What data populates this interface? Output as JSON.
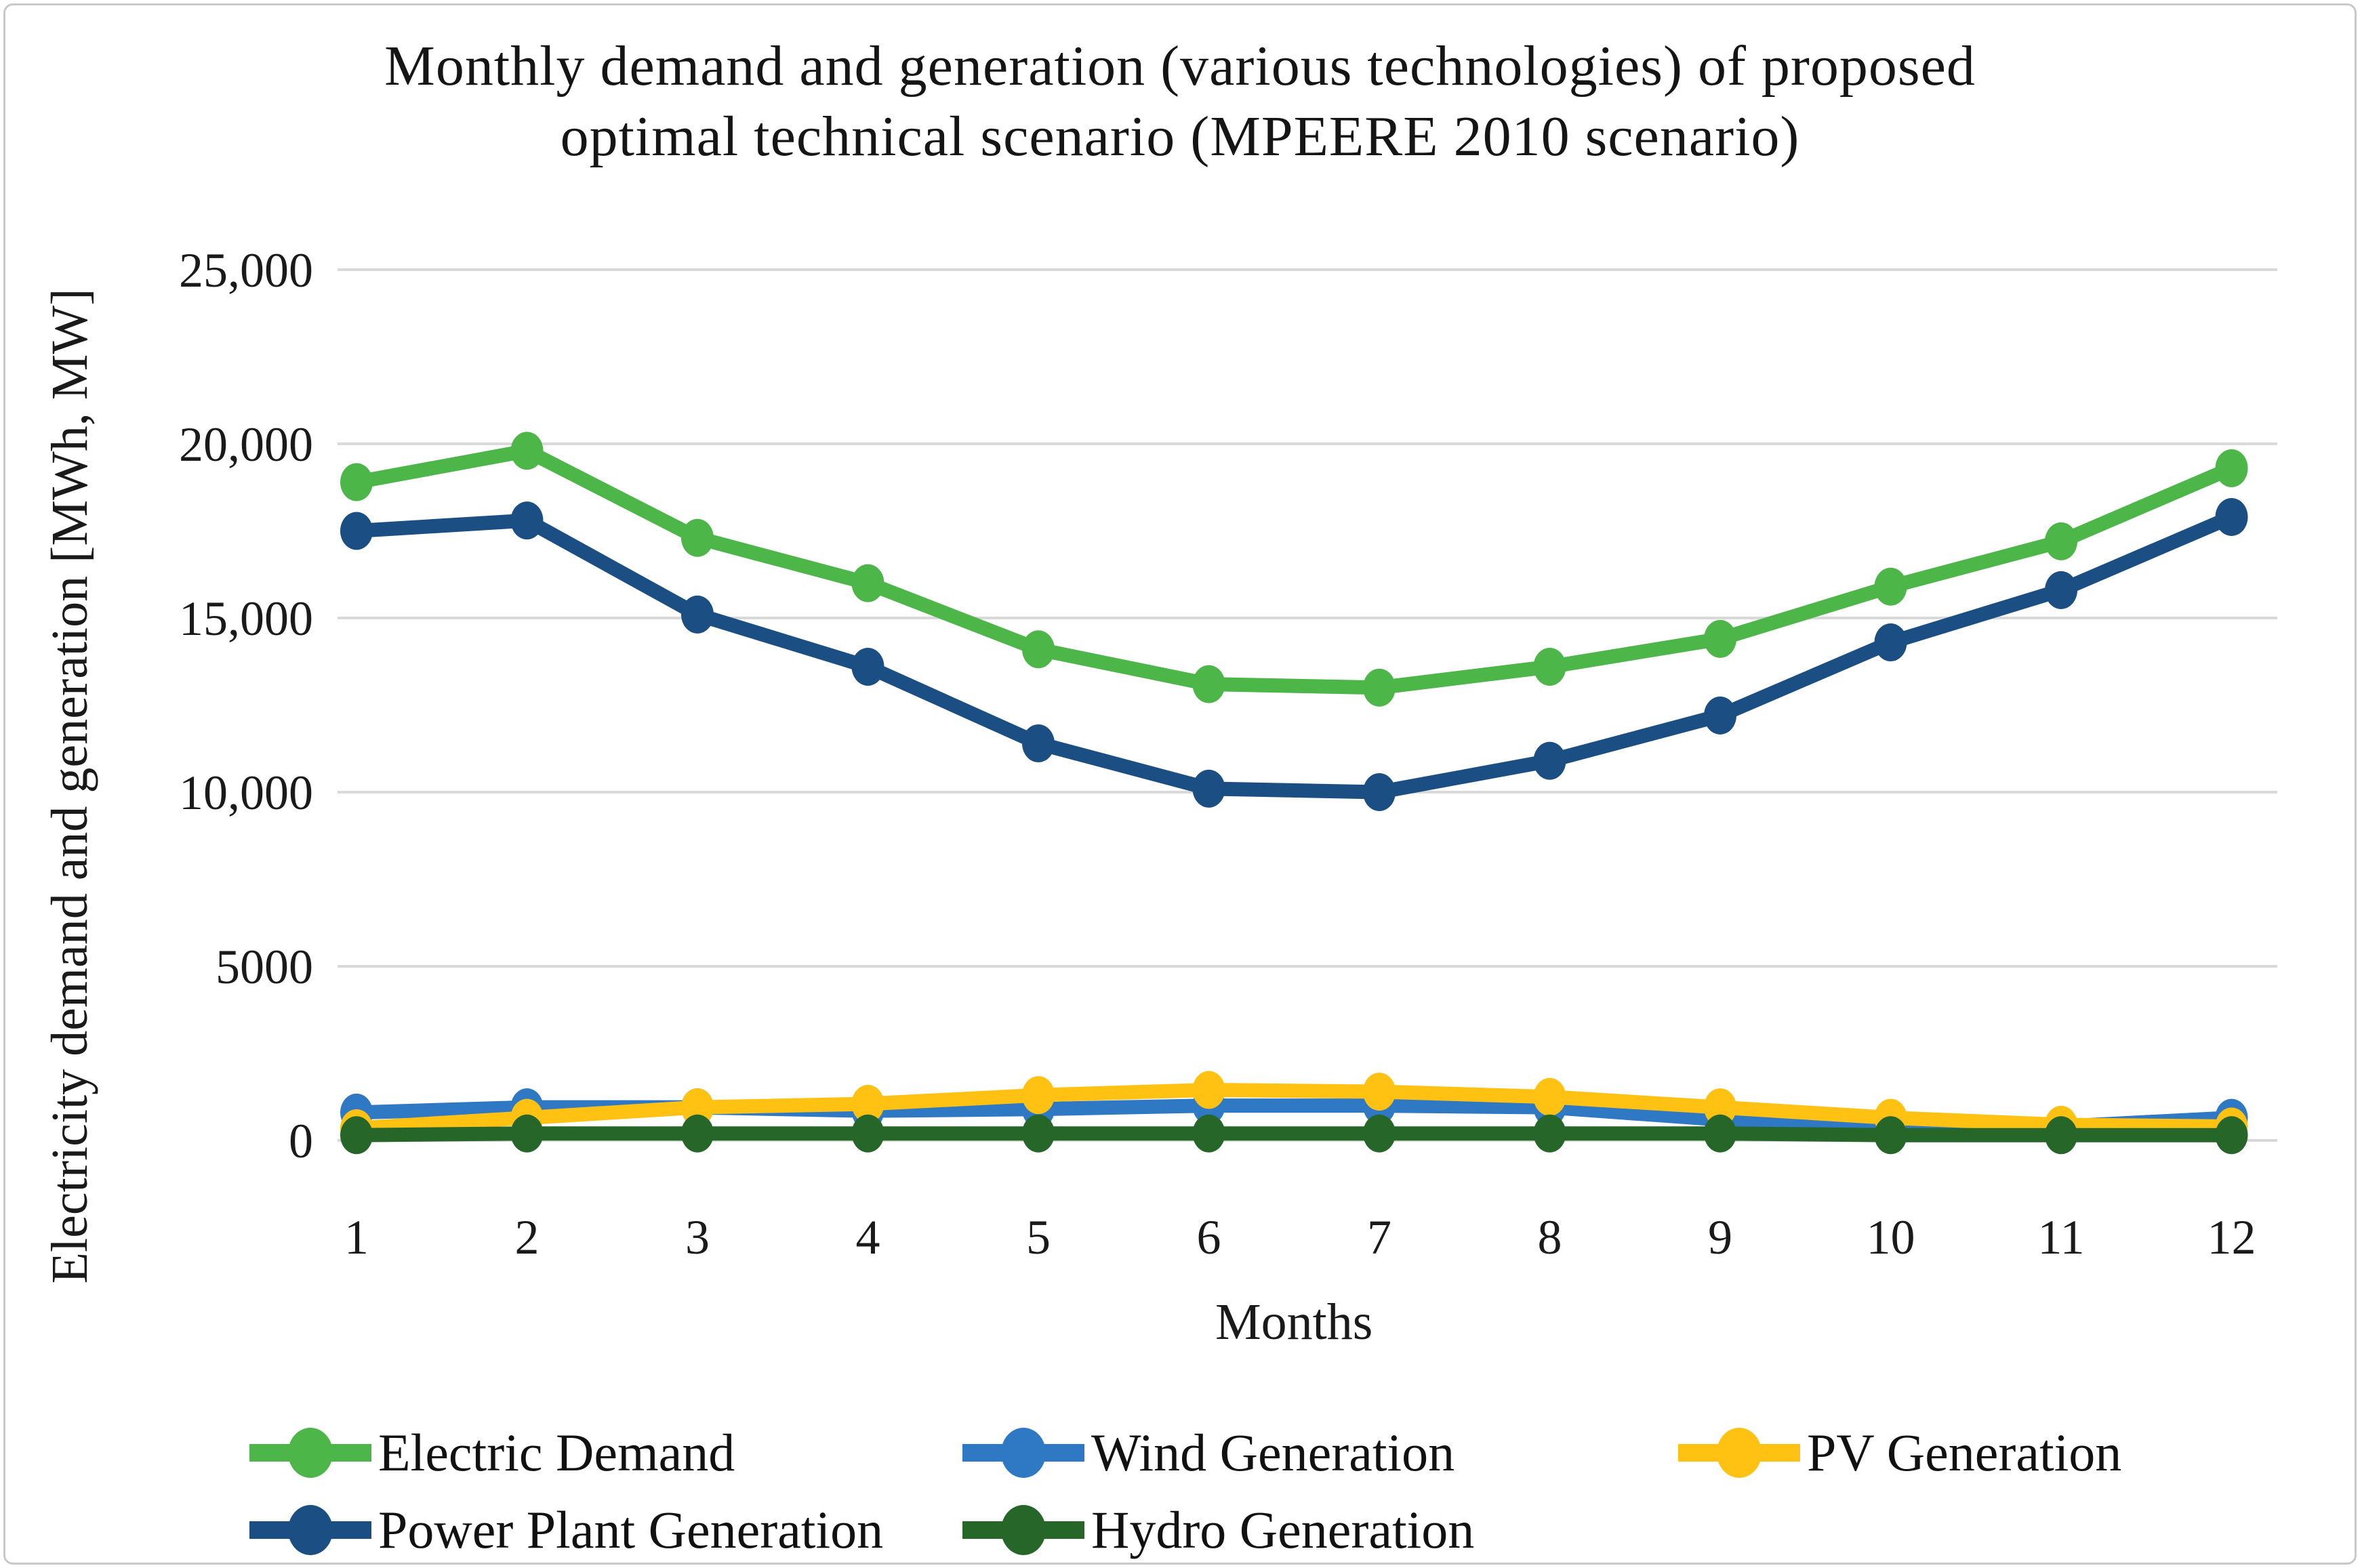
{
  "chart_data": {
    "type": "line",
    "title_line1": "Monthly demand and generation (various technologies) of proposed",
    "title_line2": "optimal technical scenario (MPEERE 2010 scenario)",
    "xlabel": "Months",
    "ylabel": "Electricity demand and generation [MWh, MW]",
    "x": [
      1,
      2,
      3,
      4,
      5,
      6,
      7,
      8,
      9,
      10,
      11,
      12
    ],
    "xtick_labels": [
      "1",
      "2",
      "3",
      "4",
      "5",
      "6",
      "7",
      "8",
      "9",
      "10",
      "11",
      "12"
    ],
    "ylim": [
      0,
      25000
    ],
    "ytick_values": [
      0,
      5000,
      10000,
      15000,
      20000,
      25000
    ],
    "ytick_labels": [
      "0",
      "5000",
      "10,000",
      "15,000",
      "20,000",
      "25,000"
    ],
    "grid": true,
    "legend_position": "bottom",
    "series": [
      {
        "name": "Electric Demand",
        "color": "#4CB648",
        "values": [
          18900,
          19800,
          17300,
          16000,
          14100,
          13100,
          13000,
          13600,
          14400,
          15900,
          17200,
          19300
        ]
      },
      {
        "name": "Wind Generation",
        "color": "#2E78C4",
        "values": [
          800,
          950,
          950,
          850,
          900,
          1000,
          1000,
          950,
          600,
          450,
          400,
          650
        ]
      },
      {
        "name": "PV Generation",
        "color": "#FFC112",
        "values": [
          350,
          650,
          950,
          1050,
          1300,
          1450,
          1400,
          1250,
          950,
          650,
          450,
          400
        ]
      },
      {
        "name": "Power Plant Generation",
        "color": "#1B4E82",
        "values": [
          17500,
          17800,
          15100,
          13600,
          11400,
          10100,
          10000,
          10900,
          12200,
          14300,
          15800,
          17900
        ]
      },
      {
        "name": "Hydro Generation",
        "color": "#266629",
        "values": [
          150,
          200,
          200,
          200,
          200,
          200,
          200,
          200,
          200,
          150,
          150,
          150
        ]
      }
    ]
  }
}
